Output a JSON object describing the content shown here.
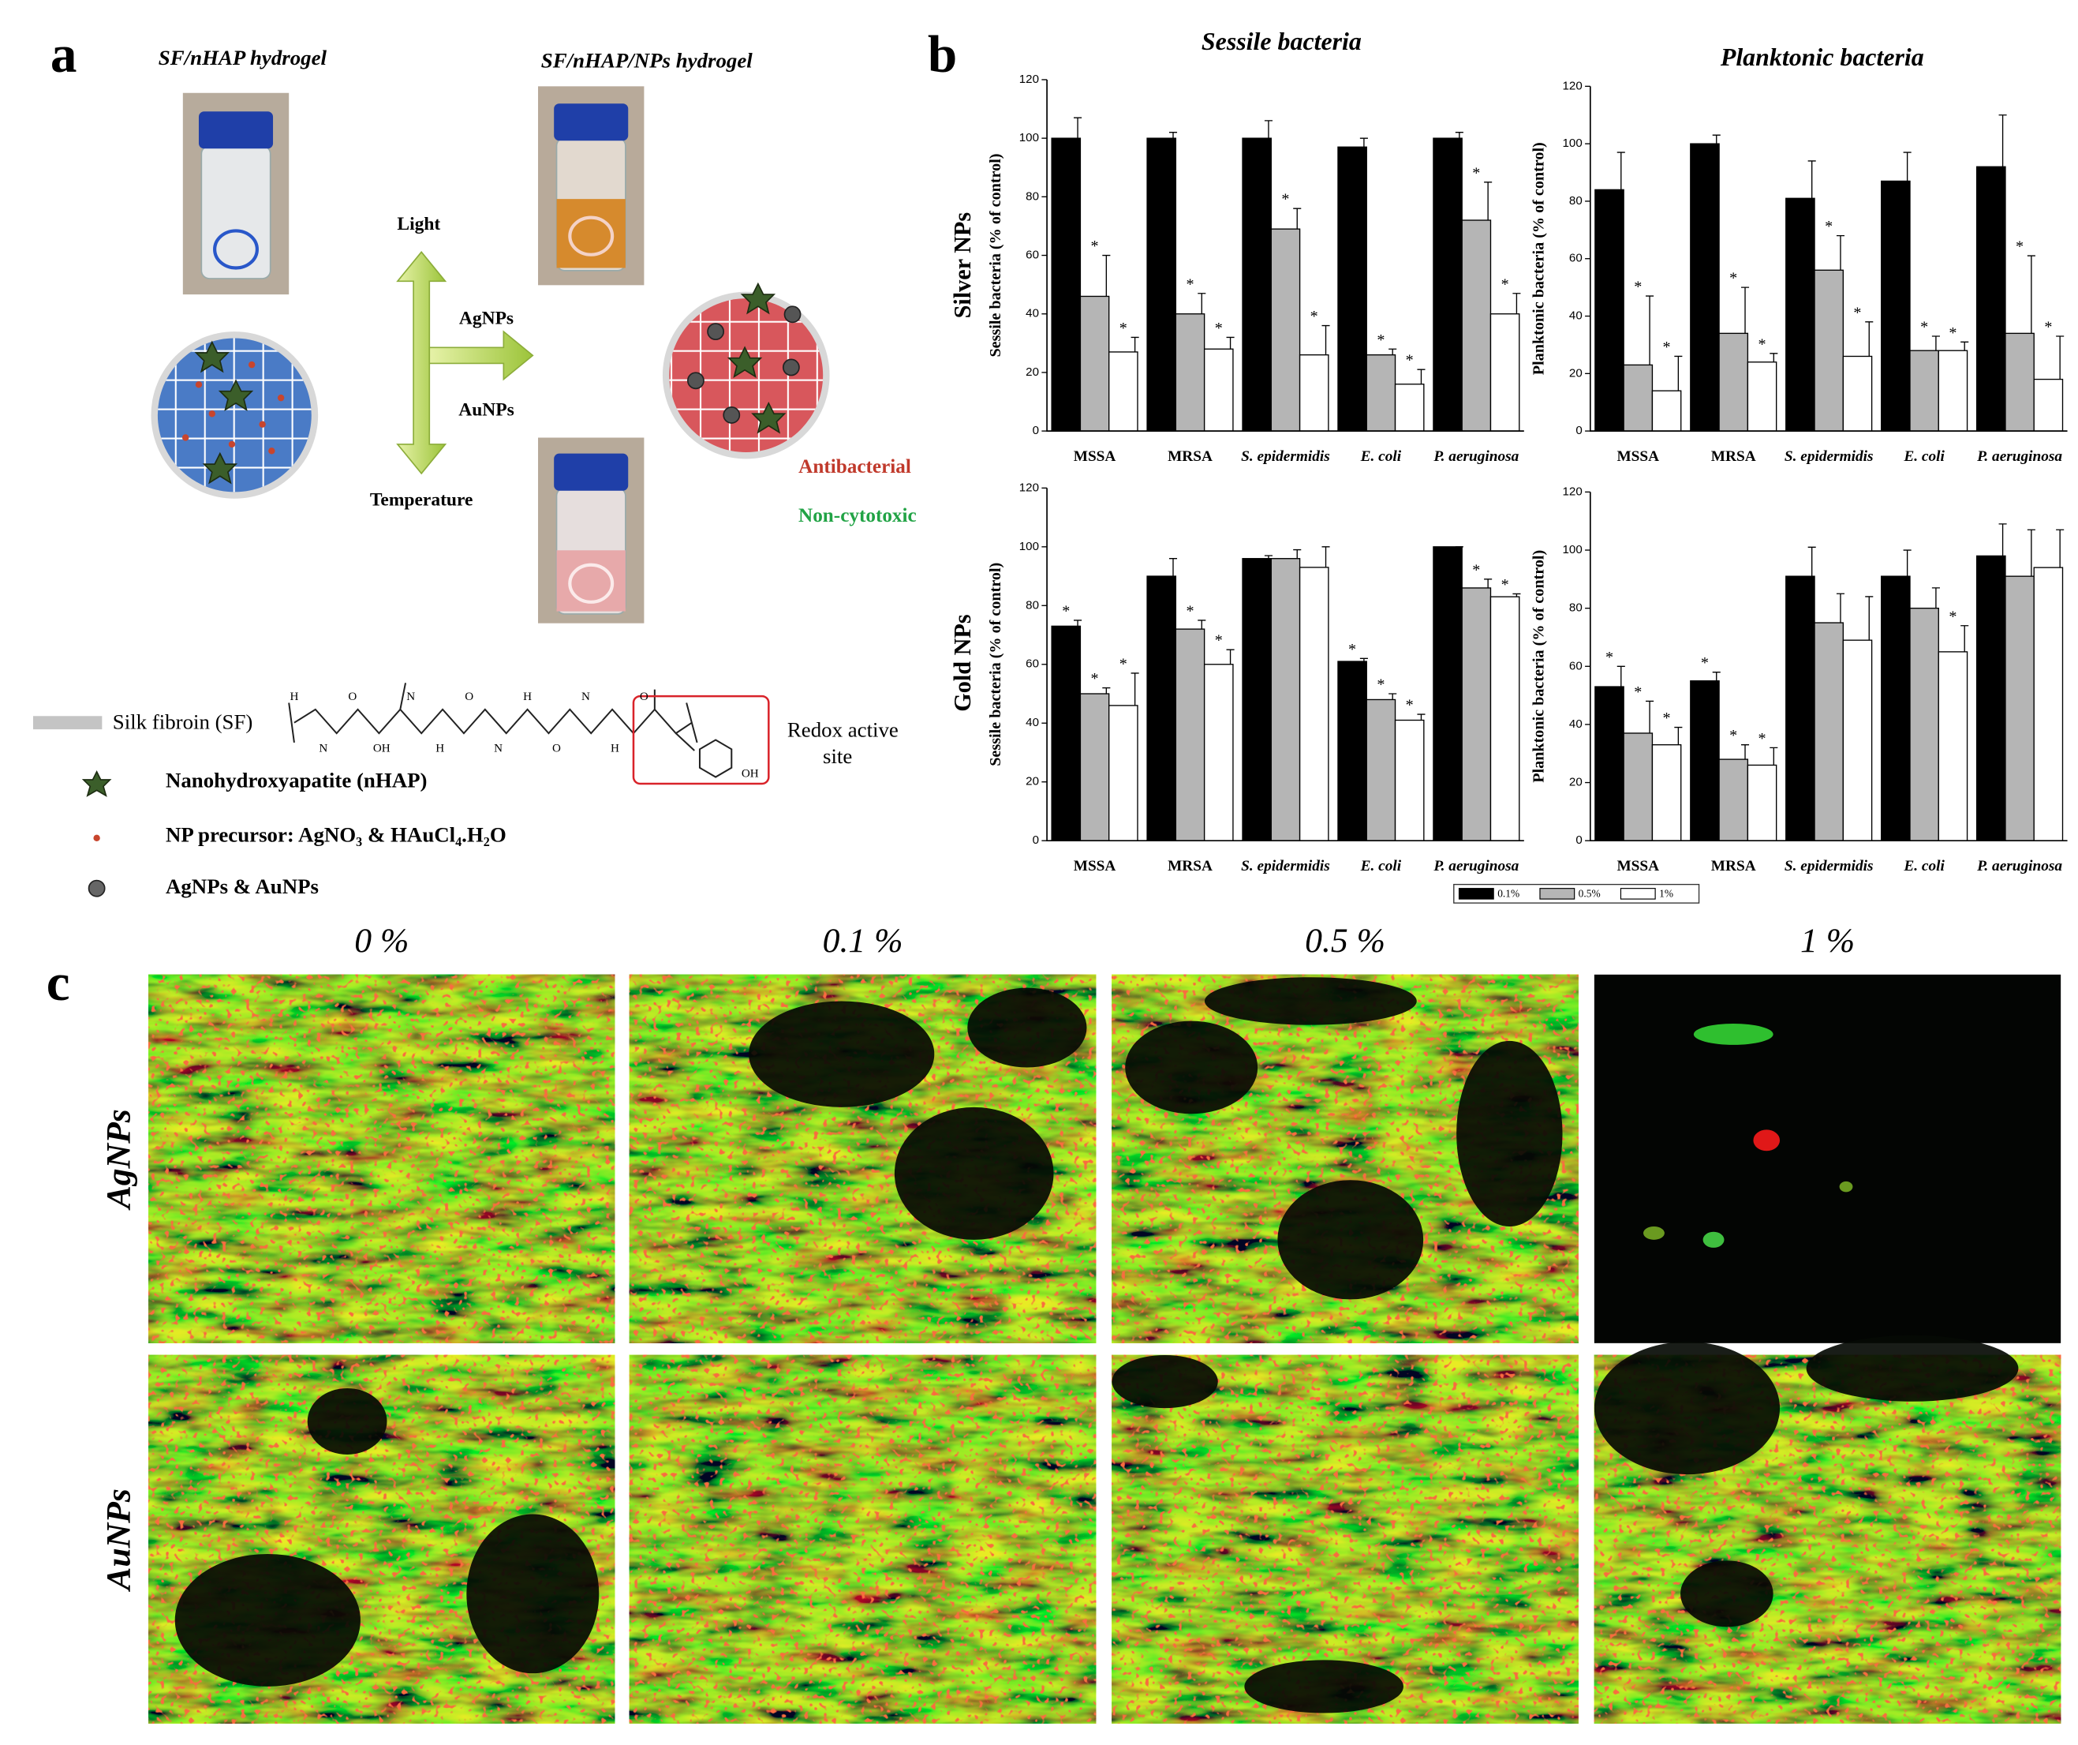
{
  "panel_a": {
    "label": "a",
    "titles": [
      "SF/nHAP hydrogel",
      "SF/nHAP/NPs hydrogel"
    ],
    "arrows": {
      "up": "Light",
      "right_top": "AgNPs",
      "right_bottom": "AuNPs",
      "down": "Temperature"
    },
    "properties": [
      "Antibacterial",
      "Non-cytotoxic"
    ],
    "sf_label": "Silk fibroin (SF)",
    "atoms": [
      "H",
      "N",
      "O",
      "OH",
      "N",
      "H",
      "O",
      "N",
      "H",
      "O",
      "N",
      "H",
      "O",
      "OH"
    ],
    "redox_label": [
      "Redox active",
      "site"
    ],
    "legend": [
      "Nanohydroxyapatite (nHAP)",
      "NP precursor: AgNO₃ & HAuCl₄.H₂O",
      "AgNPs & AuNPs"
    ]
  },
  "panel_b": {
    "label": "b",
    "column_titles": [
      "Sessile bacteria",
      "Planktonic bacteria"
    ],
    "row_labels": [
      "Silver NPs",
      "Gold NPs"
    ],
    "legend": [
      {
        "name": "0.1%",
        "color": "#000000"
      },
      {
        "name": "0.5%",
        "color": "#b5b5b5"
      },
      {
        "name": "1%",
        "color": "#ffffff"
      }
    ]
  },
  "chart_data": [
    {
      "type": "bar",
      "ylabel": "Sessile bacteria (% of control)",
      "categories": [
        "MSSA",
        "MRSA",
        "S. epidermidis",
        "E. coli",
        "P. aeruginosa"
      ],
      "series": [
        {
          "values": [
            100,
            100,
            100,
            97,
            100
          ],
          "errors": [
            7,
            2,
            6,
            3,
            2
          ],
          "significance": [
            null,
            null,
            null,
            null,
            null
          ]
        },
        {
          "values": [
            46,
            40,
            69,
            26,
            72
          ],
          "errors": [
            14,
            7,
            7,
            2,
            13
          ],
          "significance": [
            "*",
            "*",
            "*",
            "*",
            "*"
          ]
        },
        {
          "values": [
            27,
            28,
            26,
            16,
            40
          ],
          "errors": [
            5,
            4,
            10,
            5,
            7
          ],
          "significance": [
            "*",
            "*",
            "*",
            "*",
            "*"
          ]
        }
      ],
      "ylim": [
        0,
        120
      ],
      "yticks": [
        0,
        20,
        40,
        60,
        80,
        100,
        120
      ]
    },
    {
      "type": "bar",
      "ylabel": "Planktonic bacteria (% of control)",
      "categories": [
        "MSSA",
        "MRSA",
        "S. epidermidis",
        "E. coli",
        "P. aeruginosa"
      ],
      "series": [
        {
          "values": [
            84,
            100,
            81,
            87,
            92
          ],
          "errors": [
            13,
            3,
            13,
            10,
            18
          ],
          "significance": [
            null,
            null,
            null,
            null,
            null
          ]
        },
        {
          "values": [
            23,
            34,
            56,
            28,
            34
          ],
          "errors": [
            24,
            16,
            12,
            5,
            27
          ],
          "significance": [
            "*",
            "*",
            "*",
            "*",
            "*"
          ]
        },
        {
          "values": [
            14,
            24,
            26,
            28,
            18
          ],
          "errors": [
            12,
            3,
            12,
            3,
            15
          ],
          "significance": [
            "*",
            "*",
            "*",
            "*",
            "*"
          ]
        }
      ],
      "ylim": [
        0,
        120
      ],
      "yticks": [
        0,
        20,
        40,
        60,
        80,
        100,
        120
      ]
    },
    {
      "type": "bar",
      "ylabel": "Sessile bacteria (% of control)",
      "categories": [
        "MSSA",
        "MRSA",
        "S. epidermidis",
        "E. coli",
        "P. aeruginosa"
      ],
      "series": [
        {
          "values": [
            73,
            90,
            96,
            61,
            100
          ],
          "errors": [
            2,
            6,
            1,
            1,
            0
          ],
          "significance": [
            "*",
            null,
            null,
            "*",
            null
          ]
        },
        {
          "values": [
            50,
            72,
            96,
            48,
            86
          ],
          "errors": [
            2,
            3,
            3,
            2,
            3
          ],
          "significance": [
            "*",
            "*",
            null,
            "*",
            "*"
          ]
        },
        {
          "values": [
            46,
            60,
            93,
            41,
            83
          ],
          "errors": [
            11,
            5,
            7,
            2,
            1
          ],
          "significance": [
            "*",
            "*",
            null,
            "*",
            "*"
          ]
        }
      ],
      "ylim": [
        0,
        120
      ],
      "yticks": [
        0,
        20,
        40,
        60,
        80,
        100,
        120
      ]
    },
    {
      "type": "bar",
      "ylabel": "Planktonic bacteria (% of control)",
      "categories": [
        "MSSA",
        "MRSA",
        "S. epidermidis",
        "E. coli",
        "P. aeruginosa"
      ],
      "series": [
        {
          "values": [
            53,
            55,
            91,
            91,
            98
          ],
          "errors": [
            7,
            3,
            10,
            9,
            11
          ],
          "significance": [
            "*",
            "*",
            null,
            null,
            null
          ]
        },
        {
          "values": [
            37,
            28,
            75,
            80,
            91
          ],
          "errors": [
            11,
            5,
            10,
            7,
            16
          ],
          "significance": [
            "*",
            "*",
            null,
            null,
            null
          ]
        },
        {
          "values": [
            33,
            26,
            69,
            65,
            94
          ],
          "errors": [
            6,
            6,
            15,
            9,
            13
          ],
          "significance": [
            "*",
            "*",
            null,
            "*",
            null
          ]
        }
      ],
      "ylim": [
        0,
        120
      ],
      "yticks": [
        0,
        20,
        40,
        60,
        80,
        100,
        120
      ]
    }
  ],
  "panel_c": {
    "label": "c",
    "columns": [
      "0 %",
      "0.1 %",
      "0.5 %",
      "1 %"
    ],
    "rows": [
      "AgNPs",
      "AuNPs"
    ]
  }
}
